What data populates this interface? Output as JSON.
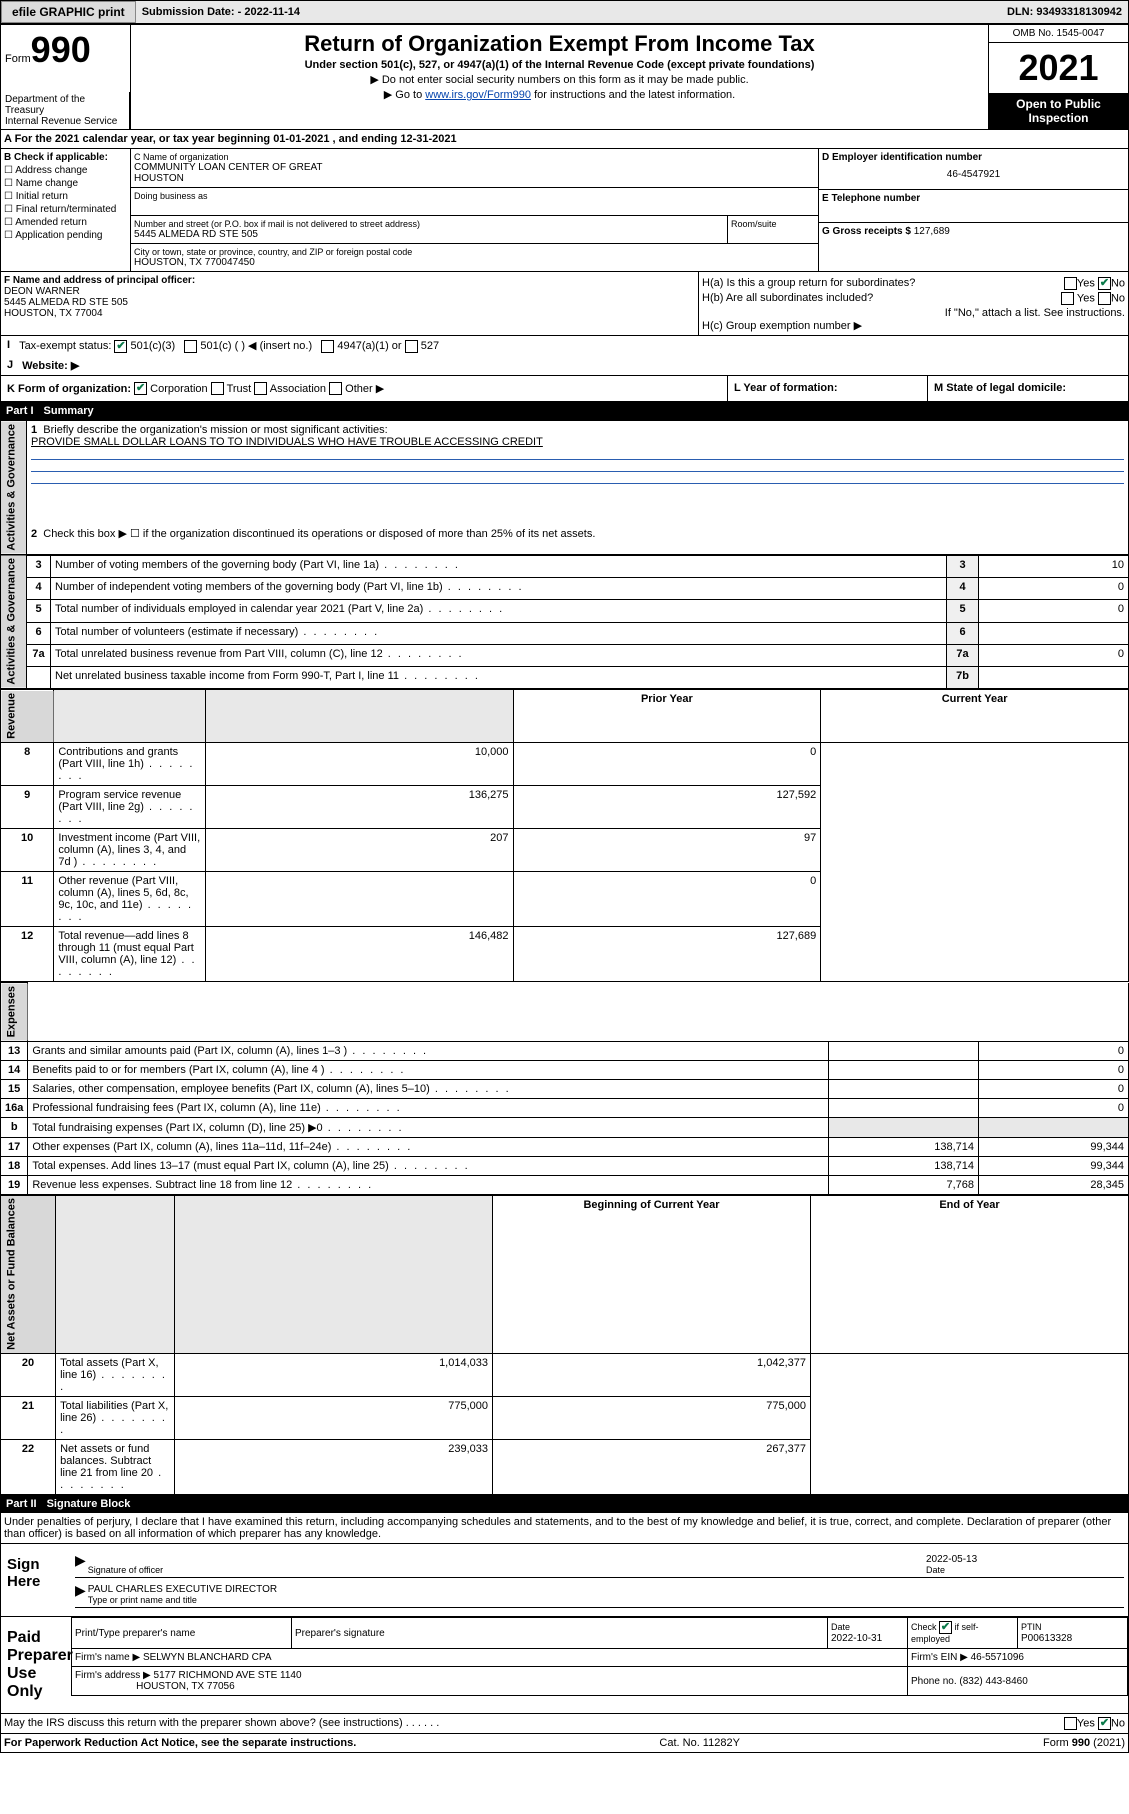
{
  "topbar": {
    "efile_btn": "efile GRAPHIC print",
    "submit_label": "Submission Date: - 2022-11-14",
    "dln": "DLN: 93493318130942"
  },
  "header": {
    "form_word": "Form",
    "form_num": "990",
    "dept": "Department of the Treasury\nInternal Revenue Service",
    "title": "Return of Organization Exempt From Income Tax",
    "sub1": "Under section 501(c), 527, or 4947(a)(1) of the Internal Revenue Code (except private foundations)",
    "sub2": "▶ Do not enter social security numbers on this form as it may be made public.",
    "sub3_pre": "▶ Go to ",
    "sub3_link": "www.irs.gov/Form990",
    "sub3_post": " for instructions and the latest information.",
    "omb": "OMB No. 1545-0047",
    "year": "2021",
    "inspection": "Open to Public Inspection"
  },
  "row_a": "A For the 2021 calendar year, or tax year beginning 01-01-2021  , and ending 12-31-2021",
  "col_b": {
    "hdr": "B Check if applicable:",
    "addr": "Address change",
    "name": "Name change",
    "init": "Initial return",
    "final": "Final return/terminated",
    "amend": "Amended return",
    "app": "Application pending"
  },
  "col_c": {
    "c_lbl": "C Name of organization",
    "org1": "COMMUNITY LOAN CENTER OF GREAT",
    "org2": "HOUSTON",
    "dba_lbl": "Doing business as",
    "addr_lbl": "Number and street (or P.O. box if mail is not delivered to street address)",
    "room_lbl": "Room/suite",
    "addr": "5445 ALMEDA RD STE 505",
    "city_lbl": "City or town, state or province, country, and ZIP or foreign postal code",
    "city": "HOUSTON, TX  770047450"
  },
  "col_d": {
    "lbl": "D Employer identification number",
    "val": "46-4547921"
  },
  "col_e": {
    "lbl": "E Telephone number"
  },
  "col_g": {
    "lbl": "G Gross receipts $",
    "val": "127,689"
  },
  "f": {
    "lbl": "F  Name and address of principal officer:",
    "name": "DEON WARNER",
    "addr": "5445 ALMEDA RD STE 505",
    "city": "HOUSTON, TX  77004"
  },
  "h": {
    "ha": "H(a)  Is this a group return for subordinates?",
    "hb": "H(b)  Are all subordinates included?",
    "note": "If \"No,\" attach a list. See instructions.",
    "hc": "H(c)  Group exemption number ▶",
    "yes": "Yes",
    "no": "No"
  },
  "i": {
    "lbl": "Tax-exempt status:",
    "c3": "501(c)(3)",
    "c": "501(c) (  ) ◀ (insert no.)",
    "a1": "4947(a)(1) or",
    "s527": "527"
  },
  "j": {
    "lbl": "Website: ▶"
  },
  "k": {
    "lbl": "K Form of organization:",
    "corp": "Corporation",
    "trust": "Trust",
    "assoc": "Association",
    "other": "Other ▶",
    "l_lbl": "L Year of formation:",
    "m_lbl": "M State of legal domicile:"
  },
  "part1": {
    "num": "Part I",
    "title": "Summary",
    "vert_ag": "Activities & Governance",
    "vert_rev": "Revenue",
    "vert_exp": "Expenses",
    "vert_na": "Net Assets or Fund Balances",
    "q1": "Briefly describe the organization's mission or most significant activities:",
    "q1v": "PROVIDE SMALL DOLLAR LOANS TO TO INDIVIDUALS WHO HAVE TROUBLE ACCESSING CREDIT",
    "q2": "Check this box ▶ ☐  if the organization discontinued its operations or disposed of more than 25% of its net assets.",
    "rows": [
      {
        "n": "3",
        "t": "Number of voting members of the governing body (Part VI, line 1a)",
        "box": "3",
        "py": "",
        "cy": "10"
      },
      {
        "n": "4",
        "t": "Number of independent voting members of the governing body (Part VI, line 1b)",
        "box": "4",
        "py": "",
        "cy": "0"
      },
      {
        "n": "5",
        "t": "Total number of individuals employed in calendar year 2021 (Part V, line 2a)",
        "box": "5",
        "py": "",
        "cy": "0"
      },
      {
        "n": "6",
        "t": "Total number of volunteers (estimate if necessary)",
        "box": "6",
        "py": "",
        "cy": ""
      },
      {
        "n": "7a",
        "t": "Total unrelated business revenue from Part VIII, column (C), line 12",
        "box": "7a",
        "py": "",
        "cy": "0"
      },
      {
        "n": "",
        "t": "Net unrelated business taxable income from Form 990-T, Part I, line 11",
        "box": "7b",
        "py": "",
        "cy": ""
      }
    ],
    "hdr_py": "Prior Year",
    "hdr_cy": "Current Year",
    "rev_rows": [
      {
        "n": "8",
        "t": "Contributions and grants (Part VIII, line 1h)",
        "py": "10,000",
        "cy": "0"
      },
      {
        "n": "9",
        "t": "Program service revenue (Part VIII, line 2g)",
        "py": "136,275",
        "cy": "127,592"
      },
      {
        "n": "10",
        "t": "Investment income (Part VIII, column (A), lines 3, 4, and 7d )",
        "py": "207",
        "cy": "97"
      },
      {
        "n": "11",
        "t": "Other revenue (Part VIII, column (A), lines 5, 6d, 8c, 9c, 10c, and 11e)",
        "py": "",
        "cy": "0"
      },
      {
        "n": "12",
        "t": "Total revenue—add lines 8 through 11 (must equal Part VIII, column (A), line 12)",
        "py": "146,482",
        "cy": "127,689"
      }
    ],
    "exp_rows": [
      {
        "n": "13",
        "t": "Grants and similar amounts paid (Part IX, column (A), lines 1–3 )",
        "py": "",
        "cy": "0"
      },
      {
        "n": "14",
        "t": "Benefits paid to or for members (Part IX, column (A), line 4 )",
        "py": "",
        "cy": "0"
      },
      {
        "n": "15",
        "t": "Salaries, other compensation, employee benefits (Part IX, column (A), lines 5–10)",
        "py": "",
        "cy": "0"
      },
      {
        "n": "16a",
        "t": "Professional fundraising fees (Part IX, column (A), line 11e)",
        "py": "",
        "cy": "0"
      },
      {
        "n": "b",
        "t": "Total fundraising expenses (Part IX, column (D), line 25) ▶0",
        "py": "shade",
        "cy": "shade"
      },
      {
        "n": "17",
        "t": "Other expenses (Part IX, column (A), lines 11a–11d, 11f–24e)",
        "py": "138,714",
        "cy": "99,344"
      },
      {
        "n": "18",
        "t": "Total expenses. Add lines 13–17 (must equal Part IX, column (A), line 25)",
        "py": "138,714",
        "cy": "99,344"
      },
      {
        "n": "19",
        "t": "Revenue less expenses. Subtract line 18 from line 12",
        "py": "7,768",
        "cy": "28,345"
      }
    ],
    "hdr_boc": "Beginning of Current Year",
    "hdr_eoy": "End of Year",
    "na_rows": [
      {
        "n": "20",
        "t": "Total assets (Part X, line 16)",
        "py": "1,014,033",
        "cy": "1,042,377"
      },
      {
        "n": "21",
        "t": "Total liabilities (Part X, line 26)",
        "py": "775,000",
        "cy": "775,000"
      },
      {
        "n": "22",
        "t": "Net assets or fund balances. Subtract line 21 from line 20",
        "py": "239,033",
        "cy": "267,377"
      }
    ]
  },
  "part2": {
    "num": "Part II",
    "title": "Signature Block",
    "decl": "Under penalties of perjury, I declare that I have examined this return, including accompanying schedules and statements, and to the best of my knowledge and belief, it is true, correct, and complete. Declaration of preparer (other than officer) is based on all information of which preparer has any knowledge.",
    "sign_here": "Sign Here",
    "sig_officer": "Signature of officer",
    "date_lbl": "Date",
    "date_val": "2022-05-13",
    "name_title": "PAUL CHARLES  EXECUTIVE DIRECTOR",
    "name_title_lbl": "Type or print name and title",
    "paid_lbl": "Paid Preparer Use Only",
    "prep_name_lbl": "Print/Type preparer's name",
    "prep_sig_lbl": "Preparer's signature",
    "prep_date_lbl": "Date",
    "prep_date": "2022-10-31",
    "check_self": "Check ☑ if self-employed",
    "ptin_lbl": "PTIN",
    "ptin": "P00613328",
    "firm_name_lbl": "Firm's name    ▶",
    "firm_name": "SELWYN BLANCHARD CPA",
    "firm_ein_lbl": "Firm's EIN ▶",
    "firm_ein": "46-5571096",
    "firm_addr_lbl": "Firm's address ▶",
    "firm_addr1": "5177 RICHMOND AVE STE 1140",
    "firm_addr2": "HOUSTON, TX  77056",
    "phone_lbl": "Phone no.",
    "phone": "(832) 443-8460",
    "discuss": "May the IRS discuss this return with the preparer shown above? (see instructions)",
    "footer_left": "For Paperwork Reduction Act Notice, see the separate instructions.",
    "footer_mid": "Cat. No. 11282Y",
    "footer_right": "Form 990 (2021)"
  },
  "colors": {
    "link": "#0645ad",
    "blueline": "#2a5db0",
    "check_green": "#0a7a4a",
    "shade": "#e8e8e8"
  }
}
